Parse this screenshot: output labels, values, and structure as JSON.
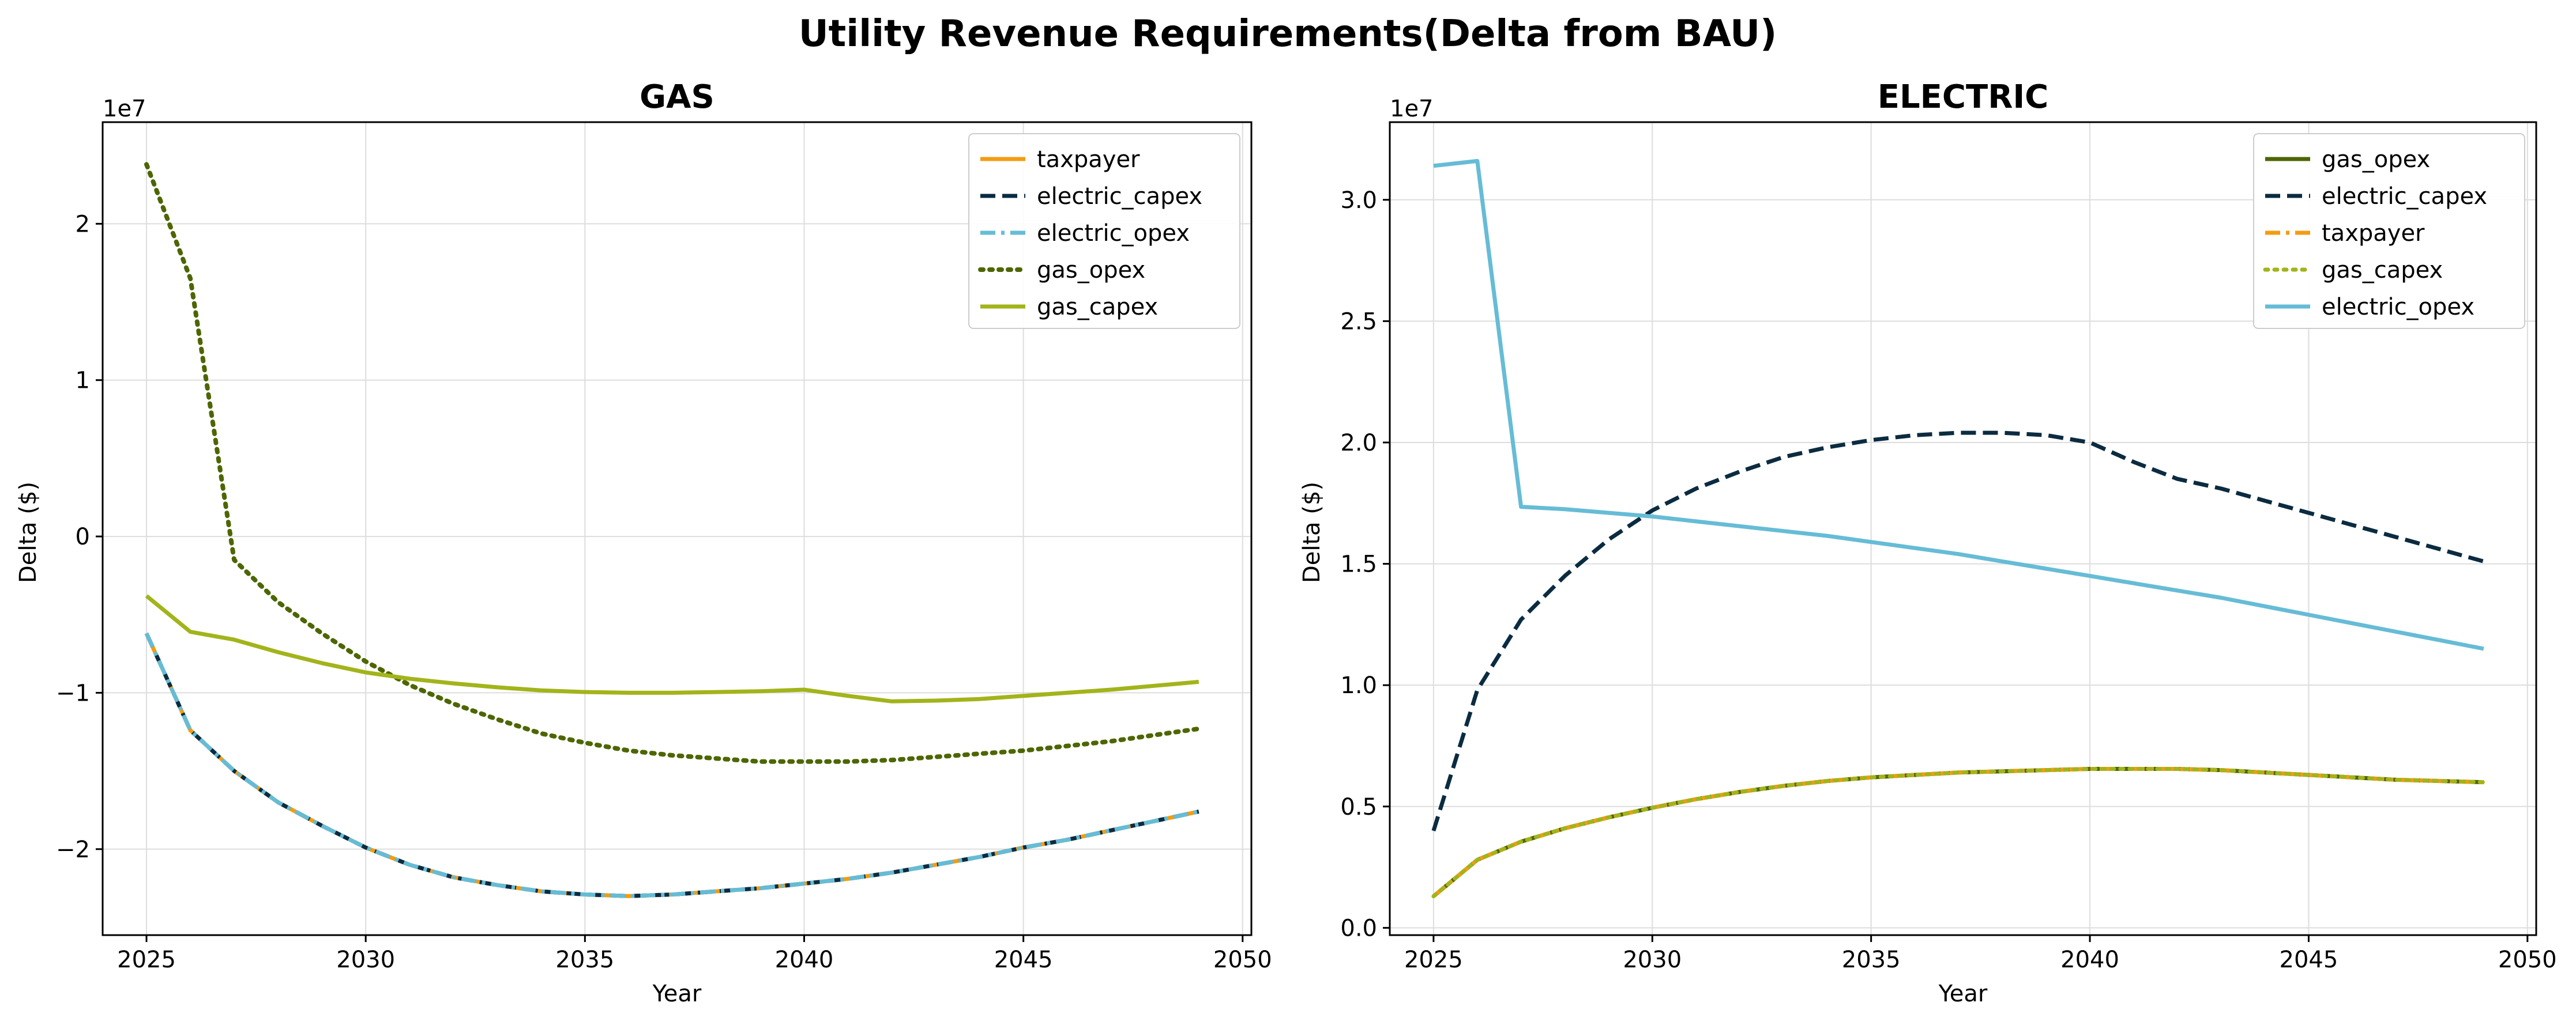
{
  "title": "Utility Revenue Requirements(Delta from BAU)",
  "colors": {
    "taxpayer": "#f39c12",
    "electric_capex": "#0b2b40",
    "electric_opex": "#66bcd6",
    "gas_opex": "#4d6600",
    "gas_capex": "#a2b41a"
  },
  "chart_data": [
    {
      "type": "line",
      "title": "GAS",
      "xlabel": "Year",
      "ylabel": "Delta ($)",
      "offset_label": "1e7",
      "xlim": [
        2024.0,
        2050.2
      ],
      "ylim": [
        -2.55,
        2.65
      ],
      "xticks": [
        2025,
        2030,
        2035,
        2040,
        2045,
        2050
      ],
      "yticks": [
        -2,
        -1,
        0,
        1,
        2
      ],
      "ytick_labels": [
        "−2",
        "−1",
        "0",
        "1",
        "2"
      ],
      "grid": true,
      "legend_position": "top-right",
      "x": [
        2025,
        2026,
        2027,
        2028,
        2029,
        2030,
        2031,
        2032,
        2033,
        2034,
        2035,
        2036,
        2037,
        2038,
        2039,
        2040,
        2041,
        2042,
        2043,
        2044,
        2045,
        2046,
        2047,
        2048,
        2049
      ],
      "series": [
        {
          "name": "taxpayer",
          "color_key": "taxpayer",
          "dash": "solid",
          "width": 7,
          "values": [
            -0.62,
            -1.24,
            -1.5,
            -1.7,
            -1.85,
            -1.99,
            -2.1,
            -2.18,
            -2.23,
            -2.27,
            -2.29,
            -2.3,
            -2.29,
            -2.27,
            -2.25,
            -2.22,
            -2.19,
            -2.15,
            -2.1,
            -2.05,
            -1.99,
            -1.94,
            -1.88,
            -1.82,
            -1.76
          ]
        },
        {
          "name": "electric_capex",
          "color_key": "electric_capex",
          "dash": "dashed",
          "width": 7,
          "values": [
            -0.62,
            -1.24,
            -1.5,
            -1.7,
            -1.85,
            -1.99,
            -2.1,
            -2.18,
            -2.23,
            -2.27,
            -2.29,
            -2.3,
            -2.29,
            -2.27,
            -2.25,
            -2.22,
            -2.19,
            -2.15,
            -2.1,
            -2.05,
            -1.99,
            -1.94,
            -1.88,
            -1.82,
            -1.76
          ]
        },
        {
          "name": "electric_opex",
          "color_key": "electric_opex",
          "dash": "dashdot",
          "width": 7,
          "values": [
            -0.62,
            -1.24,
            -1.5,
            -1.7,
            -1.85,
            -1.99,
            -2.1,
            -2.18,
            -2.23,
            -2.27,
            -2.29,
            -2.3,
            -2.29,
            -2.27,
            -2.25,
            -2.22,
            -2.19,
            -2.15,
            -2.1,
            -2.05,
            -1.99,
            -1.94,
            -1.88,
            -1.82,
            -1.76
          ]
        },
        {
          "name": "gas_opex",
          "color_key": "gas_opex",
          "dash": "dotted",
          "width": 8,
          "values": [
            2.38,
            1.65,
            -0.15,
            -0.42,
            -0.62,
            -0.8,
            -0.95,
            -1.07,
            -1.17,
            -1.26,
            -1.32,
            -1.37,
            -1.4,
            -1.42,
            -1.44,
            -1.44,
            -1.44,
            -1.43,
            -1.41,
            -1.39,
            -1.37,
            -1.34,
            -1.31,
            -1.27,
            -1.23
          ]
        },
        {
          "name": "gas_capex",
          "color_key": "gas_capex",
          "dash": "solid",
          "width": 7,
          "values": [
            -0.38,
            -0.61,
            -0.66,
            -0.74,
            -0.81,
            -0.87,
            -0.91,
            -0.94,
            -0.965,
            -0.985,
            -0.995,
            -1.0,
            -1.0,
            -0.995,
            -0.99,
            -0.98,
            -1.02,
            -1.055,
            -1.05,
            -1.04,
            -1.02,
            -1.0,
            -0.98,
            -0.955,
            -0.93
          ]
        }
      ]
    },
    {
      "type": "line",
      "title": "ELECTRIC",
      "xlabel": "Year",
      "ylabel": "Delta ($)",
      "offset_label": "1e7",
      "xlim": [
        2024.0,
        2050.2
      ],
      "ylim": [
        -0.03,
        3.32
      ],
      "xticks": [
        2025,
        2030,
        2035,
        2040,
        2045,
        2050
      ],
      "yticks": [
        0,
        0.5,
        1,
        1.5,
        2,
        2.5,
        3
      ],
      "ytick_labels": [
        "0.0",
        "0.5",
        "1.0",
        "1.5",
        "2.0",
        "2.5",
        "3.0"
      ],
      "grid": true,
      "legend_position": "top-right",
      "x": [
        2025,
        2026,
        2027,
        2028,
        2029,
        2030,
        2031,
        2032,
        2033,
        2034,
        2035,
        2036,
        2037,
        2038,
        2039,
        2040,
        2041,
        2042,
        2043,
        2044,
        2045,
        2046,
        2047,
        2048,
        2049
      ],
      "series": [
        {
          "name": "gas_opex",
          "color_key": "gas_opex",
          "dash": "solid",
          "width": 7,
          "values": [
            0.13,
            0.28,
            0.355,
            0.41,
            0.455,
            0.495,
            0.53,
            0.56,
            0.585,
            0.605,
            0.62,
            0.63,
            0.64,
            0.645,
            0.65,
            0.655,
            0.655,
            0.655,
            0.65,
            0.64,
            0.63,
            0.62,
            0.61,
            0.605,
            0.6
          ]
        },
        {
          "name": "electric_capex",
          "color_key": "electric_capex",
          "dash": "dashed",
          "width": 7,
          "values": [
            0.4,
            0.98,
            1.27,
            1.45,
            1.6,
            1.72,
            1.81,
            1.88,
            1.94,
            1.98,
            2.01,
            2.03,
            2.04,
            2.04,
            2.03,
            2.0,
            1.92,
            1.85,
            1.81,
            1.76,
            1.71,
            1.66,
            1.61,
            1.56,
            1.51
          ]
        },
        {
          "name": "taxpayer",
          "color_key": "taxpayer",
          "dash": "dashdot",
          "width": 7,
          "values": [
            0.13,
            0.28,
            0.355,
            0.41,
            0.455,
            0.495,
            0.53,
            0.56,
            0.585,
            0.605,
            0.62,
            0.63,
            0.64,
            0.645,
            0.65,
            0.655,
            0.655,
            0.655,
            0.65,
            0.64,
            0.63,
            0.62,
            0.61,
            0.605,
            0.6
          ]
        },
        {
          "name": "gas_capex",
          "color_key": "gas_capex",
          "dash": "dotted",
          "width": 7,
          "values": [
            0.13,
            0.28,
            0.355,
            0.41,
            0.455,
            0.495,
            0.53,
            0.56,
            0.585,
            0.605,
            0.62,
            0.63,
            0.64,
            0.645,
            0.65,
            0.655,
            0.655,
            0.655,
            0.65,
            0.64,
            0.63,
            0.62,
            0.61,
            0.605,
            0.6
          ]
        },
        {
          "name": "electric_opex",
          "color_key": "electric_opex",
          "dash": "solid",
          "width": 7,
          "values": [
            3.14,
            3.16,
            1.735,
            1.725,
            1.71,
            1.695,
            1.675,
            1.655,
            1.635,
            1.615,
            1.59,
            1.565,
            1.54,
            1.51,
            1.48,
            1.45,
            1.42,
            1.39,
            1.36,
            1.325,
            1.29,
            1.255,
            1.22,
            1.185,
            1.15
          ]
        }
      ]
    }
  ]
}
